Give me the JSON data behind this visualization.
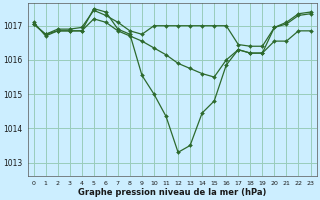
{
  "title": "Graphe pression niveau de la mer (hPa)",
  "bg_color": "#cceeff",
  "grid_color": "#99ccbb",
  "line_color": "#2d6a2d",
  "xlim": [
    -0.5,
    23.5
  ],
  "ylim": [
    1012.6,
    1017.65
  ],
  "yticks": [
    1013,
    1014,
    1015,
    1016,
    1017
  ],
  "xticks": [
    0,
    1,
    2,
    3,
    4,
    5,
    6,
    7,
    8,
    9,
    10,
    11,
    12,
    13,
    14,
    15,
    16,
    17,
    18,
    19,
    20,
    21,
    22,
    23
  ],
  "series": [
    {
      "x": [
        0,
        1,
        2,
        3,
        4,
        5,
        6,
        7,
        8,
        9,
        10,
        11,
        12,
        13,
        14,
        15,
        16,
        17,
        18,
        19,
        20,
        21,
        22,
        23
      ],
      "y": [
        1017.05,
        1016.75,
        1016.9,
        1016.9,
        1016.95,
        1017.45,
        1017.3,
        1017.1,
        1016.85,
        1016.75,
        1017.0,
        1017.0,
        1017.0,
        1017.0,
        1017.0,
        1017.0,
        1017.0,
        1016.45,
        1016.4,
        1016.4,
        1016.95,
        1017.05,
        1017.3,
        1017.35
      ]
    },
    {
      "x": [
        0,
        1,
        2,
        3,
        4,
        5,
        6,
        7,
        8,
        9,
        10,
        11,
        12,
        13,
        14,
        15,
        16,
        17,
        18,
        19,
        20,
        21,
        22,
        23
      ],
      "y": [
        1017.05,
        1016.75,
        1016.85,
        1016.85,
        1016.85,
        1017.2,
        1017.1,
        1016.85,
        1016.7,
        1016.55,
        1016.35,
        1016.15,
        1015.9,
        1015.75,
        1015.6,
        1015.5,
        1016.0,
        1016.3,
        1016.2,
        1016.2,
        1016.55,
        1016.55,
        1016.85,
        1016.85
      ]
    },
    {
      "x": [
        0,
        1,
        2,
        3,
        4,
        5,
        6,
        7,
        8,
        9,
        10,
        11,
        12,
        13,
        14,
        15,
        16,
        17,
        18,
        19,
        20,
        21,
        22,
        23
      ],
      "y": [
        1017.1,
        1016.7,
        1016.85,
        1016.85,
        1016.85,
        1017.5,
        1017.4,
        1016.9,
        1016.75,
        1015.55,
        1015.0,
        1014.35,
        1013.3,
        1013.5,
        1014.45,
        1014.8,
        1015.85,
        1016.3,
        1016.2,
        1016.2,
        1016.95,
        1017.1,
        1017.35,
        1017.4
      ]
    }
  ]
}
